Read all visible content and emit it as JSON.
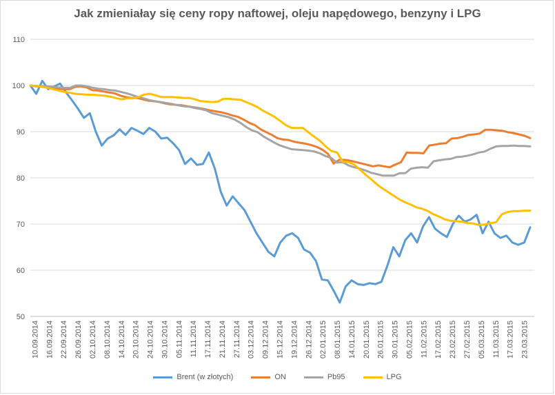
{
  "chart_data": {
    "type": "line",
    "title": "Jak zmieniałay się ceny ropy naftowej, oleju napędowego, benzyny i LPG",
    "xlabel": "",
    "ylabel": "",
    "ylim": [
      50,
      110
    ],
    "yticks": [
      50,
      60,
      70,
      80,
      90,
      100,
      110
    ],
    "grid": true,
    "legend_position": "bottom",
    "x_tick_labels": [
      "10.09.2014",
      "16.09.2014",
      "22.09.2014",
      "26.09.2014",
      "02.10.2014",
      "08.10.2014",
      "14.10.2014",
      "20.10.2014",
      "24.10.2014",
      "30.10.2014",
      "05.11.2014",
      "11.11.2014",
      "17.11.2014",
      "21.11.2014",
      "27.11.2014",
      "03.12.2014",
      "09.12.2014",
      "15.12.2014",
      "19.12.2014",
      "26.12.2014",
      "02.01.2015",
      "08.01.2015",
      "14.01.2015",
      "20.01.2015",
      "26.01.2015",
      "30.01.2015",
      "05.02.2015",
      "11.02.2015",
      "17.02.2015",
      "23.02.2015",
      "27.02.2015",
      "05.03.2015",
      "11.03.2015",
      "17.03.2015",
      "23.03.2015"
    ],
    "series": [
      {
        "name": "Brent (w złotych)",
        "color": "#5b9bd5",
        "values": [
          100,
          98.2,
          101,
          99.2,
          99.8,
          100.4,
          98.5,
          96.8,
          95,
          93,
          94,
          90,
          87,
          88.5,
          89.2,
          90.5,
          89.3,
          90.8,
          90.2,
          89.5,
          90.8,
          90,
          88.5,
          88.7,
          87.5,
          86,
          83,
          84.2,
          82.8,
          83,
          85.5,
          82,
          77,
          74,
          76,
          74.5,
          73,
          70.5,
          68,
          66,
          64,
          63,
          66,
          67.5,
          68,
          67,
          64.5,
          63.8,
          62,
          58,
          57.8,
          55.5,
          53,
          56.5,
          57.8,
          57,
          56.8,
          57.2,
          57,
          57.5,
          61,
          65,
          63,
          66.5,
          68,
          66,
          69.5,
          71.5,
          69,
          68,
          67.2,
          70,
          71.8,
          70.5,
          71,
          72,
          68,
          70.5,
          68,
          67,
          67.5,
          66,
          65.5,
          66,
          69.3
        ]
      },
      {
        "name": "ON",
        "color": "#ed7d31",
        "values": [
          100,
          99.8,
          99.8,
          99.7,
          99.6,
          99.3,
          99.2,
          99.2,
          99.7,
          99.8,
          99.6,
          99,
          98.9,
          98.7,
          98.5,
          98.3,
          97.8,
          97.5,
          97.3,
          97.3,
          97,
          96.7,
          96.6,
          96.4,
          96.1,
          95.9,
          95.8,
          95.7,
          95.5,
          95.3,
          95.1,
          94.9,
          94.6,
          94.4,
          94.2,
          93.9,
          93.5,
          93.2,
          92.6,
          91.9,
          91.4,
          90.5,
          89.9,
          89.3,
          88.6,
          88.3,
          88.2,
          87.8,
          87.6,
          87.4,
          87.1,
          86.7,
          86.1,
          85.2,
          83.1,
          83.9,
          83.9,
          83.7,
          83.4,
          83.1,
          82.8,
          82.5,
          82.7,
          82.5,
          82.3,
          82.9,
          83.4,
          85.5,
          85.4,
          85.4,
          85.3,
          87,
          87.2,
          87.4,
          87.5,
          88.5,
          88.6,
          88.9,
          89.3,
          89.4,
          89.6,
          90.4,
          90.4,
          90.3,
          90.2,
          89.9,
          89.7,
          89.4,
          89.1,
          88.6
        ]
      },
      {
        "name": "Pb95",
        "color": "#a5a5a5",
        "values": [
          100,
          99.9,
          99.9,
          99.8,
          99.7,
          99.6,
          99.5,
          99.5,
          100,
          100,
          99.8,
          99.5,
          99.3,
          99.2,
          99,
          98.9,
          98.6,
          98.3,
          97.9,
          97.5,
          97.2,
          96.8,
          96.6,
          96.4,
          96.2,
          96,
          95.7,
          95.5,
          95.4,
          95.1,
          94.9,
          94.6,
          94,
          93.7,
          93.4,
          93.1,
          92.6,
          91.9,
          91,
          90.3,
          89.9,
          89,
          88.3,
          87.6,
          87,
          86.6,
          86.2,
          86.1,
          86,
          85.9,
          85.7,
          85.3,
          84.7,
          84.3,
          83.3,
          83.4,
          82.7,
          82.3,
          82,
          81.6,
          81.1,
          80.8,
          80.5,
          80.5,
          80.5,
          81,
          81,
          82,
          82.2,
          82.3,
          82.2,
          83.6,
          83.8,
          84,
          84.1,
          84.5,
          84.6,
          84.8,
          85.1,
          85.5,
          85.7,
          86.3,
          86.8,
          86.9,
          86.9,
          87,
          86.9,
          86.9,
          86.8
        ]
      },
      {
        "name": "LPG",
        "color": "#ffc000",
        "values": [
          100,
          99.9,
          99.7,
          99.5,
          99.2,
          98.9,
          98.6,
          98.4,
          98.2,
          98.1,
          98,
          98,
          97.9,
          97.8,
          97.6,
          97.3,
          97,
          97.2,
          97.2,
          97.5,
          98,
          98.2,
          97.9,
          97.5,
          97.5,
          97.5,
          97.4,
          97.3,
          97.3,
          97,
          96.6,
          96.5,
          96.4,
          96.5,
          97.1,
          97.1,
          97,
          96.9,
          96.4,
          95.9,
          95.3,
          94.5,
          93.9,
          93.2,
          92.3,
          91.4,
          90.8,
          90.8,
          90.8,
          89.8,
          88.9,
          88,
          86.8,
          85.8,
          85.5,
          83.5,
          83.4,
          82.9,
          81.8,
          80.7,
          79.7,
          78.6,
          77.7,
          76.9,
          76.1,
          75.3,
          74.7,
          74.2,
          73.6,
          73.3,
          72.8,
          72.1,
          71.6,
          71,
          70.7,
          70.6,
          70.5,
          70.2,
          70.1,
          69.8,
          69.9,
          70.2,
          70.4,
          72.1,
          72.6,
          72.8,
          72.8,
          72.9,
          72.9
        ]
      }
    ]
  }
}
